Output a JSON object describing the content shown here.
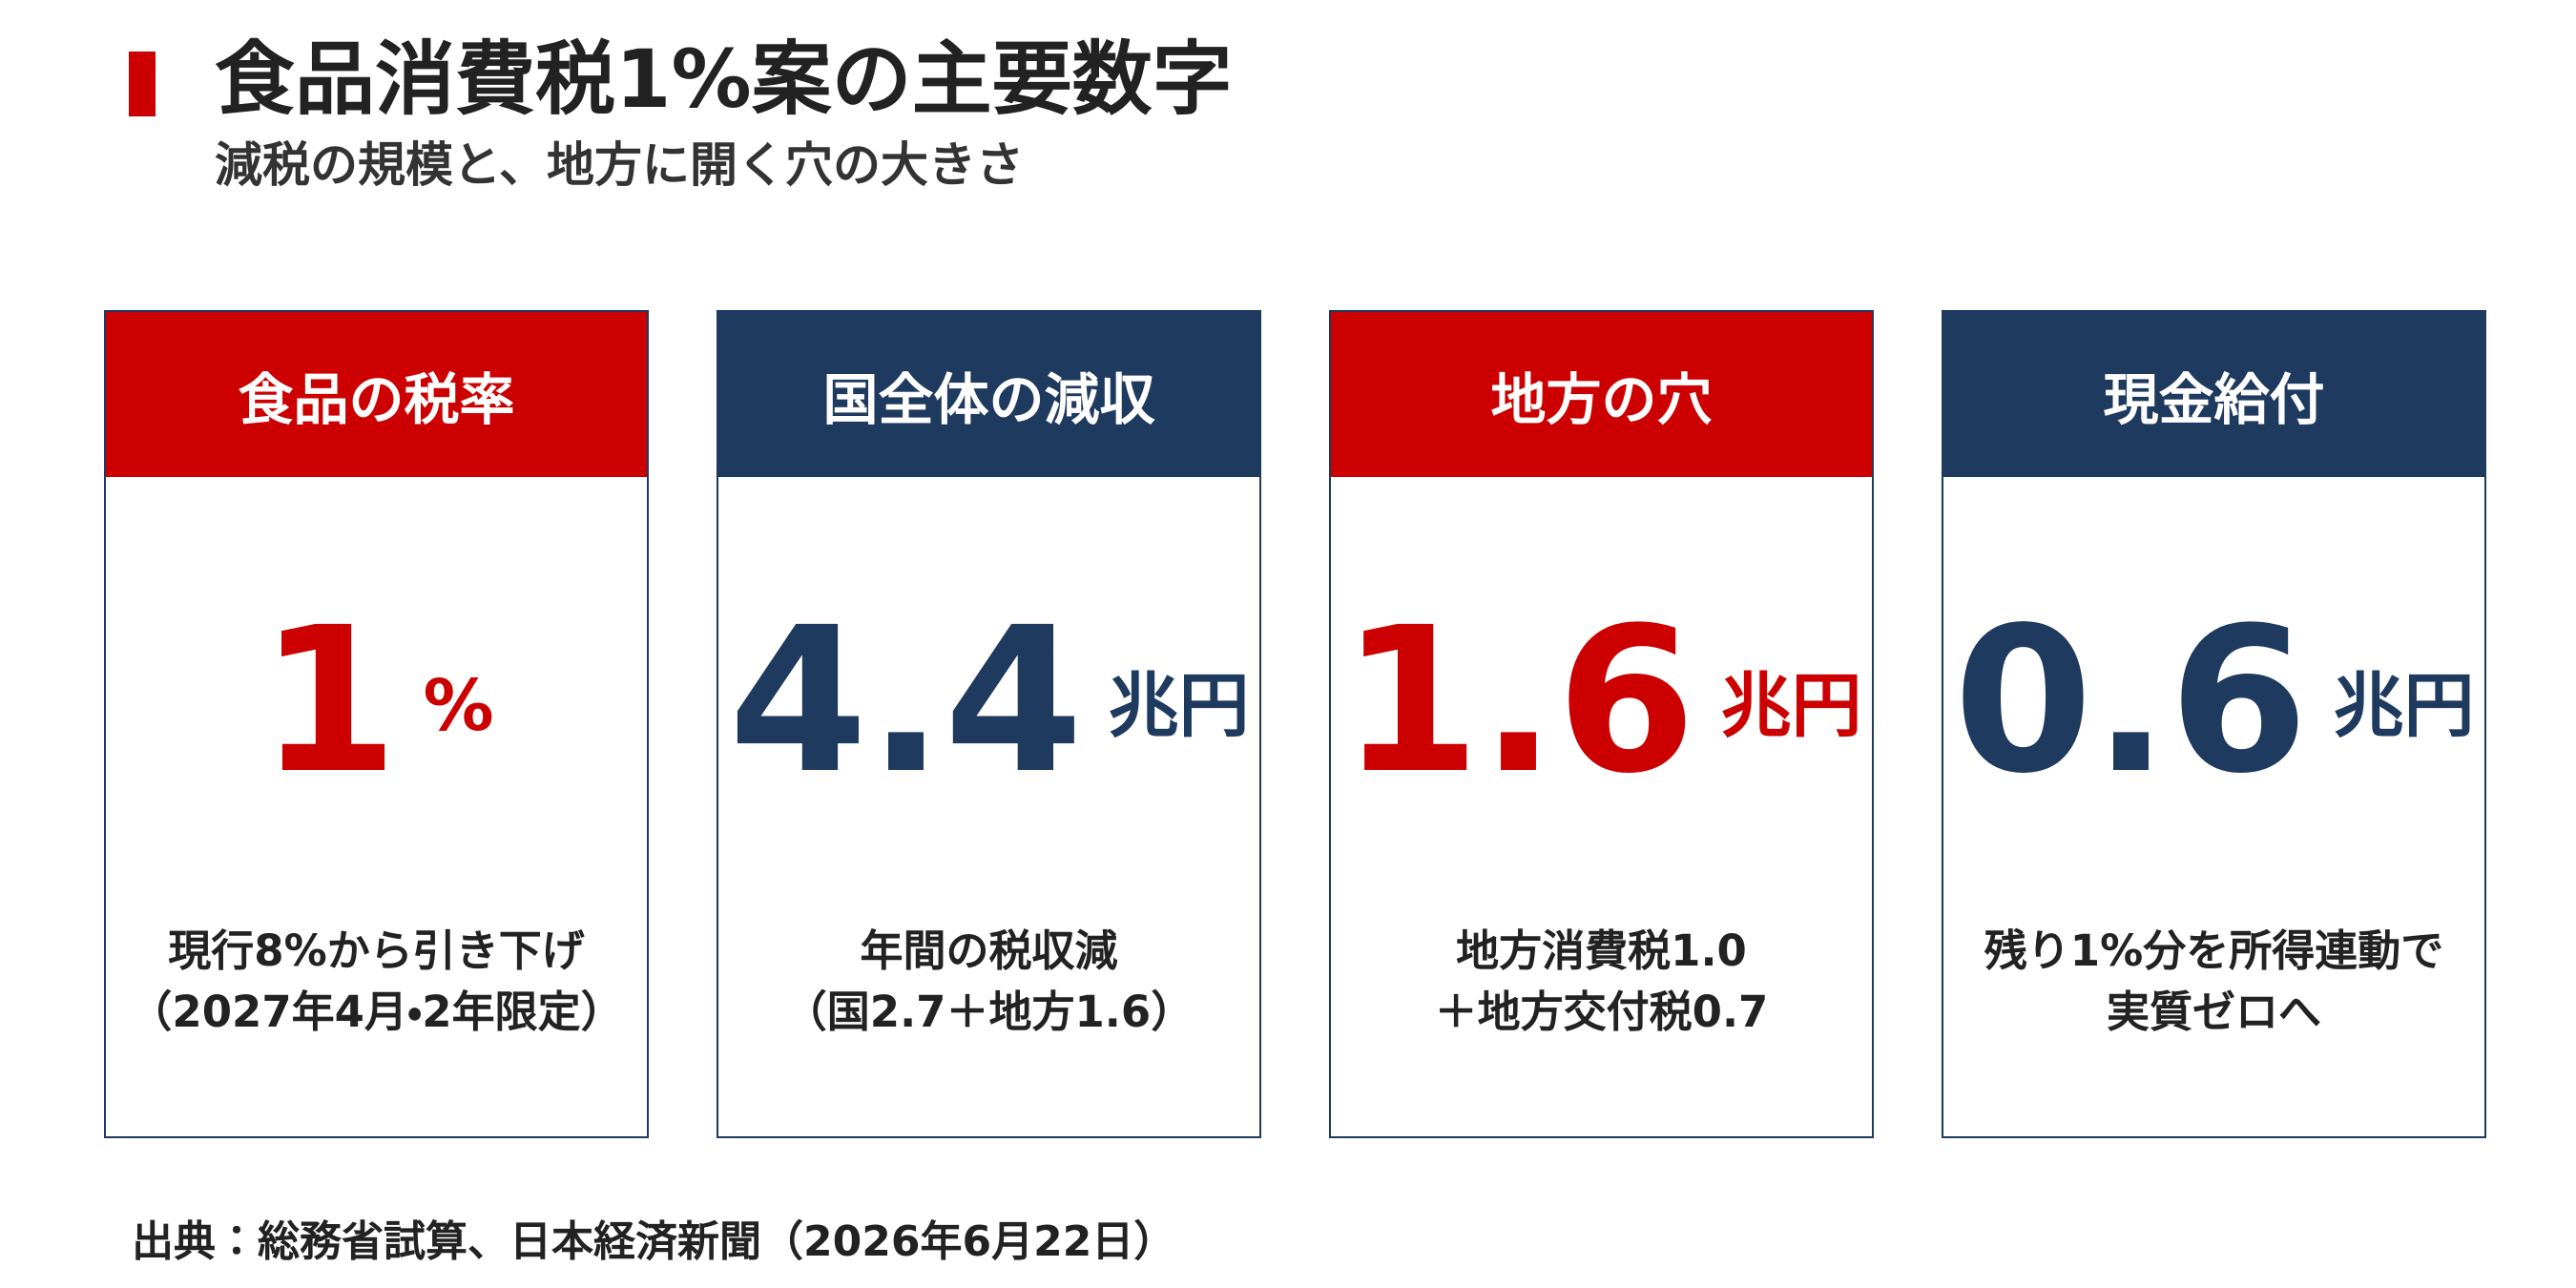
{
  "header": {
    "title": "食品消費税1%案の主要数字",
    "subtitle": "減税の規模と、地方に開く穴の大きさ"
  },
  "cards": [
    {
      "label": "食品の税率",
      "value": "1",
      "unit": "%",
      "color": "#cc0000",
      "note": [
        "現行8%から引き下げ",
        "（2027年4月・2年限定）"
      ]
    },
    {
      "label": "国全体の減収",
      "value": "4.4",
      "unit": "兆円",
      "color": "#1f3a5f",
      "note": [
        "年間の税収減",
        "（国2.7＋地方1.6）"
      ]
    },
    {
      "label": "地方の穴",
      "value": "1.6",
      "unit": "兆円",
      "color": "#cc0000",
      "note": [
        "地方消費税1.0",
        "＋地方交付税0.7"
      ]
    },
    {
      "label": "現金給付",
      "value": "0.6",
      "unit": "兆円",
      "color": "#1f3a5f",
      "note": [
        "残り1%分を所得連動で",
        "実質ゼロへ"
      ]
    }
  ],
  "footer": {
    "source": "出典：総務省試算、日本経済新聞（2026年6月22日）"
  }
}
